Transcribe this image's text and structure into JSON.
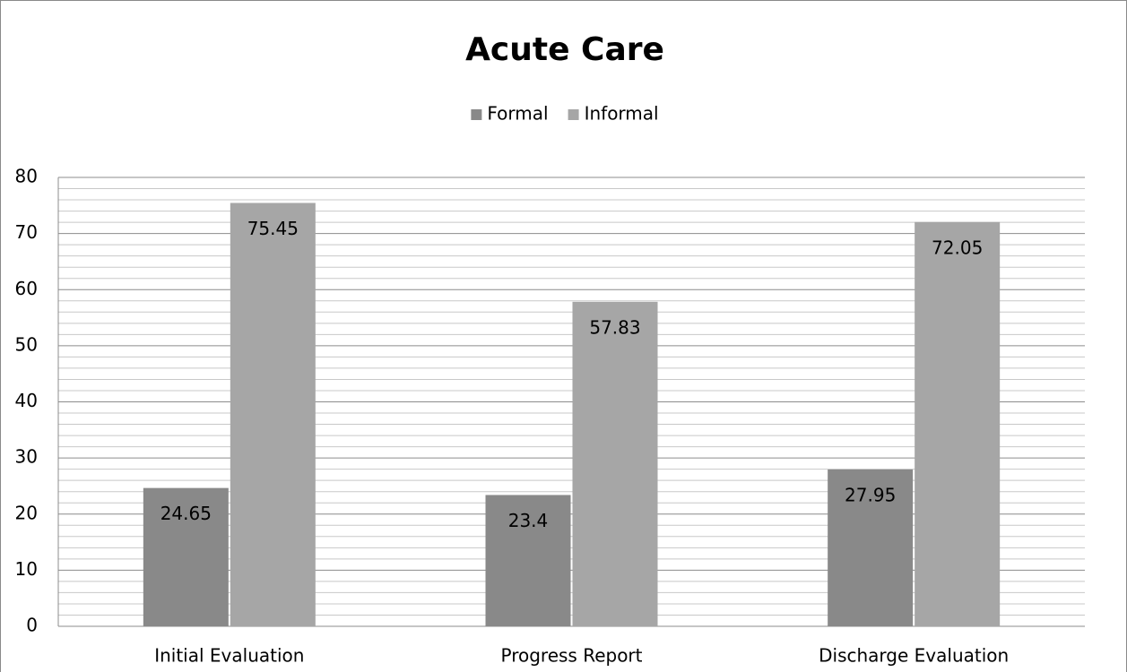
{
  "chart_data": {
    "type": "bar",
    "title": "Acute Care",
    "categories": [
      "Initial Evaluation",
      "Progress Report",
      "Discharge Evaluation"
    ],
    "series": [
      {
        "name": "Formal",
        "color": "#898989",
        "values": [
          24.65,
          23.4,
          27.95
        ]
      },
      {
        "name": "Informal",
        "color": "#a6a6a6",
        "values": [
          75.45,
          57.83,
          72.05
        ]
      }
    ],
    "ylim": [
      0,
      80
    ],
    "yticks": [
      0,
      10,
      20,
      30,
      40,
      50,
      60,
      70,
      80
    ],
    "grid": true,
    "legend": "top"
  }
}
